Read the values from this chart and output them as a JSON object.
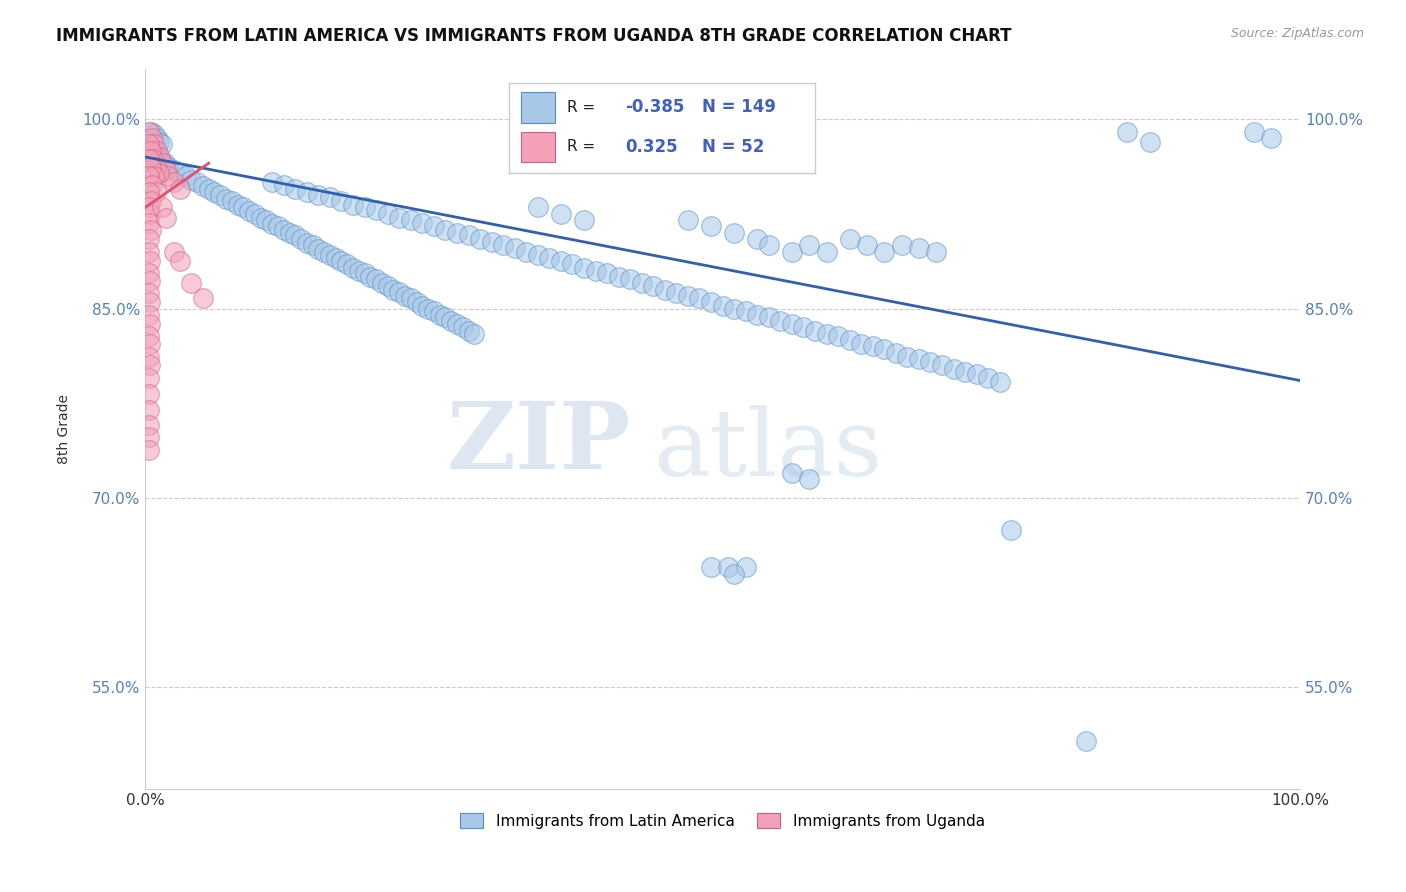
{
  "title": "IMMIGRANTS FROM LATIN AMERICA VS IMMIGRANTS FROM UGANDA 8TH GRADE CORRELATION CHART",
  "source_text": "Source: ZipAtlas.com",
  "ylabel": "8th Grade",
  "xlabel": "",
  "xlim": [
    0.0,
    1.0
  ],
  "ylim": [
    0.47,
    1.04
  ],
  "yticks": [
    0.55,
    0.7,
    0.85,
    1.0
  ],
  "ytick_labels": [
    "55.0%",
    "70.0%",
    "85.0%",
    "100.0%"
  ],
  "xticks": [
    0.0,
    1.0
  ],
  "xtick_labels": [
    "0.0%",
    "100.0%"
  ],
  "legend_r_blue": "-0.385",
  "legend_n_blue": "149",
  "legend_r_pink": "0.325",
  "legend_n_pink": "52",
  "blue_color": "#a8c8e8",
  "pink_color": "#f4a0b8",
  "blue_edge_color": "#5590c8",
  "pink_edge_color": "#d06080",
  "trendline_color": "#3060b0",
  "pink_trendline_color": "#e05070",
  "watermark_zip": "ZIP",
  "watermark_atlas": "atlas",
  "title_fontsize": 12,
  "blue_scatter": [
    [
      0.005,
      0.99
    ],
    [
      0.008,
      0.988
    ],
    [
      0.01,
      0.985
    ],
    [
      0.012,
      0.982
    ],
    [
      0.015,
      0.98
    ],
    [
      0.003,
      0.975
    ],
    [
      0.006,
      0.972
    ],
    [
      0.009,
      0.97
    ],
    [
      0.013,
      0.968
    ],
    [
      0.017,
      0.965
    ],
    [
      0.02,
      0.962
    ],
    [
      0.025,
      0.96
    ],
    [
      0.03,
      0.957
    ],
    [
      0.035,
      0.955
    ],
    [
      0.04,
      0.952
    ],
    [
      0.045,
      0.95
    ],
    [
      0.05,
      0.947
    ],
    [
      0.055,
      0.945
    ],
    [
      0.06,
      0.942
    ],
    [
      0.065,
      0.94
    ],
    [
      0.07,
      0.937
    ],
    [
      0.075,
      0.935
    ],
    [
      0.08,
      0.932
    ],
    [
      0.085,
      0.93
    ],
    [
      0.09,
      0.927
    ],
    [
      0.095,
      0.925
    ],
    [
      0.1,
      0.922
    ],
    [
      0.105,
      0.92
    ],
    [
      0.11,
      0.917
    ],
    [
      0.115,
      0.915
    ],
    [
      0.12,
      0.912
    ],
    [
      0.125,
      0.91
    ],
    [
      0.13,
      0.908
    ],
    [
      0.135,
      0.905
    ],
    [
      0.14,
      0.902
    ],
    [
      0.145,
      0.9
    ],
    [
      0.15,
      0.897
    ],
    [
      0.155,
      0.895
    ],
    [
      0.16,
      0.892
    ],
    [
      0.165,
      0.89
    ],
    [
      0.17,
      0.888
    ],
    [
      0.175,
      0.885
    ],
    [
      0.18,
      0.882
    ],
    [
      0.185,
      0.88
    ],
    [
      0.19,
      0.878
    ],
    [
      0.195,
      0.875
    ],
    [
      0.2,
      0.873
    ],
    [
      0.205,
      0.87
    ],
    [
      0.21,
      0.868
    ],
    [
      0.215,
      0.865
    ],
    [
      0.22,
      0.863
    ],
    [
      0.225,
      0.86
    ],
    [
      0.23,
      0.858
    ],
    [
      0.235,
      0.855
    ],
    [
      0.24,
      0.852
    ],
    [
      0.245,
      0.85
    ],
    [
      0.25,
      0.848
    ],
    [
      0.255,
      0.845
    ],
    [
      0.26,
      0.843
    ],
    [
      0.265,
      0.84
    ],
    [
      0.27,
      0.838
    ],
    [
      0.275,
      0.835
    ],
    [
      0.28,
      0.832
    ],
    [
      0.285,
      0.83
    ],
    [
      0.11,
      0.95
    ],
    [
      0.12,
      0.948
    ],
    [
      0.13,
      0.945
    ],
    [
      0.14,
      0.942
    ],
    [
      0.15,
      0.94
    ],
    [
      0.16,
      0.938
    ],
    [
      0.17,
      0.935
    ],
    [
      0.18,
      0.932
    ],
    [
      0.19,
      0.93
    ],
    [
      0.2,
      0.928
    ],
    [
      0.21,
      0.925
    ],
    [
      0.22,
      0.922
    ],
    [
      0.23,
      0.92
    ],
    [
      0.24,
      0.918
    ],
    [
      0.25,
      0.915
    ],
    [
      0.26,
      0.912
    ],
    [
      0.27,
      0.91
    ],
    [
      0.28,
      0.908
    ],
    [
      0.29,
      0.905
    ],
    [
      0.3,
      0.903
    ],
    [
      0.31,
      0.9
    ],
    [
      0.32,
      0.898
    ],
    [
      0.33,
      0.895
    ],
    [
      0.34,
      0.892
    ],
    [
      0.35,
      0.89
    ],
    [
      0.36,
      0.888
    ],
    [
      0.37,
      0.885
    ],
    [
      0.38,
      0.882
    ],
    [
      0.39,
      0.88
    ],
    [
      0.4,
      0.878
    ],
    [
      0.41,
      0.875
    ],
    [
      0.42,
      0.873
    ],
    [
      0.43,
      0.87
    ],
    [
      0.44,
      0.868
    ],
    [
      0.45,
      0.865
    ],
    [
      0.46,
      0.862
    ],
    [
      0.47,
      0.86
    ],
    [
      0.48,
      0.858
    ],
    [
      0.49,
      0.855
    ],
    [
      0.5,
      0.852
    ],
    [
      0.51,
      0.85
    ],
    [
      0.52,
      0.848
    ],
    [
      0.53,
      0.845
    ],
    [
      0.54,
      0.843
    ],
    [
      0.55,
      0.84
    ],
    [
      0.56,
      0.838
    ],
    [
      0.57,
      0.835
    ],
    [
      0.58,
      0.832
    ],
    [
      0.59,
      0.83
    ],
    [
      0.6,
      0.828
    ],
    [
      0.61,
      0.825
    ],
    [
      0.62,
      0.822
    ],
    [
      0.63,
      0.82
    ],
    [
      0.64,
      0.818
    ],
    [
      0.65,
      0.815
    ],
    [
      0.66,
      0.812
    ],
    [
      0.67,
      0.81
    ],
    [
      0.68,
      0.808
    ],
    [
      0.69,
      0.805
    ],
    [
      0.7,
      0.802
    ],
    [
      0.71,
      0.8
    ],
    [
      0.72,
      0.798
    ],
    [
      0.73,
      0.795
    ],
    [
      0.74,
      0.792
    ],
    [
      0.34,
      0.93
    ],
    [
      0.36,
      0.925
    ],
    [
      0.38,
      0.92
    ],
    [
      0.47,
      0.92
    ],
    [
      0.49,
      0.915
    ],
    [
      0.51,
      0.91
    ],
    [
      0.53,
      0.905
    ],
    [
      0.54,
      0.9
    ],
    [
      0.56,
      0.895
    ],
    [
      0.575,
      0.9
    ],
    [
      0.59,
      0.895
    ],
    [
      0.61,
      0.905
    ],
    [
      0.625,
      0.9
    ],
    [
      0.64,
      0.895
    ],
    [
      0.655,
      0.9
    ],
    [
      0.67,
      0.898
    ],
    [
      0.685,
      0.895
    ],
    [
      0.85,
      0.99
    ],
    [
      0.87,
      0.982
    ],
    [
      0.96,
      0.99
    ],
    [
      0.975,
      0.985
    ],
    [
      0.56,
      0.72
    ],
    [
      0.575,
      0.715
    ],
    [
      0.49,
      0.645
    ],
    [
      0.505,
      0.645
    ],
    [
      0.52,
      0.645
    ],
    [
      0.51,
      0.64
    ],
    [
      0.75,
      0.675
    ],
    [
      0.815,
      0.508
    ]
  ],
  "pink_scatter": [
    [
      0.003,
      0.99
    ],
    [
      0.006,
      0.985
    ],
    [
      0.008,
      0.98
    ],
    [
      0.01,
      0.975
    ],
    [
      0.013,
      0.97
    ],
    [
      0.015,
      0.965
    ],
    [
      0.018,
      0.96
    ],
    [
      0.02,
      0.955
    ],
    [
      0.025,
      0.95
    ],
    [
      0.03,
      0.945
    ],
    [
      0.003,
      0.98
    ],
    [
      0.005,
      0.975
    ],
    [
      0.007,
      0.968
    ],
    [
      0.009,
      0.962
    ],
    [
      0.012,
      0.957
    ],
    [
      0.003,
      0.968
    ],
    [
      0.005,
      0.962
    ],
    [
      0.008,
      0.955
    ],
    [
      0.003,
      0.955
    ],
    [
      0.006,
      0.948
    ],
    [
      0.009,
      0.942
    ],
    [
      0.003,
      0.942
    ],
    [
      0.005,
      0.935
    ],
    [
      0.003,
      0.93
    ],
    [
      0.004,
      0.925
    ],
    [
      0.003,
      0.918
    ],
    [
      0.005,
      0.912
    ],
    [
      0.003,
      0.905
    ],
    [
      0.003,
      0.895
    ],
    [
      0.004,
      0.888
    ],
    [
      0.003,
      0.878
    ],
    [
      0.004,
      0.872
    ],
    [
      0.003,
      0.862
    ],
    [
      0.004,
      0.855
    ],
    [
      0.003,
      0.845
    ],
    [
      0.004,
      0.838
    ],
    [
      0.003,
      0.828
    ],
    [
      0.004,
      0.822
    ],
    [
      0.003,
      0.812
    ],
    [
      0.004,
      0.805
    ],
    [
      0.015,
      0.93
    ],
    [
      0.018,
      0.922
    ],
    [
      0.025,
      0.895
    ],
    [
      0.03,
      0.888
    ],
    [
      0.04,
      0.87
    ],
    [
      0.05,
      0.858
    ],
    [
      0.003,
      0.795
    ],
    [
      0.003,
      0.782
    ],
    [
      0.003,
      0.77
    ],
    [
      0.003,
      0.758
    ],
    [
      0.003,
      0.748
    ],
    [
      0.003,
      0.738
    ]
  ],
  "trendline_x": [
    0.0,
    1.0
  ],
  "trendline_y_start": 0.97,
  "trendline_y_end": 0.793,
  "pink_trendline_x": [
    0.0,
    0.055
  ],
  "pink_trendline_y_start": 0.93,
  "pink_trendline_y_end": 0.965
}
